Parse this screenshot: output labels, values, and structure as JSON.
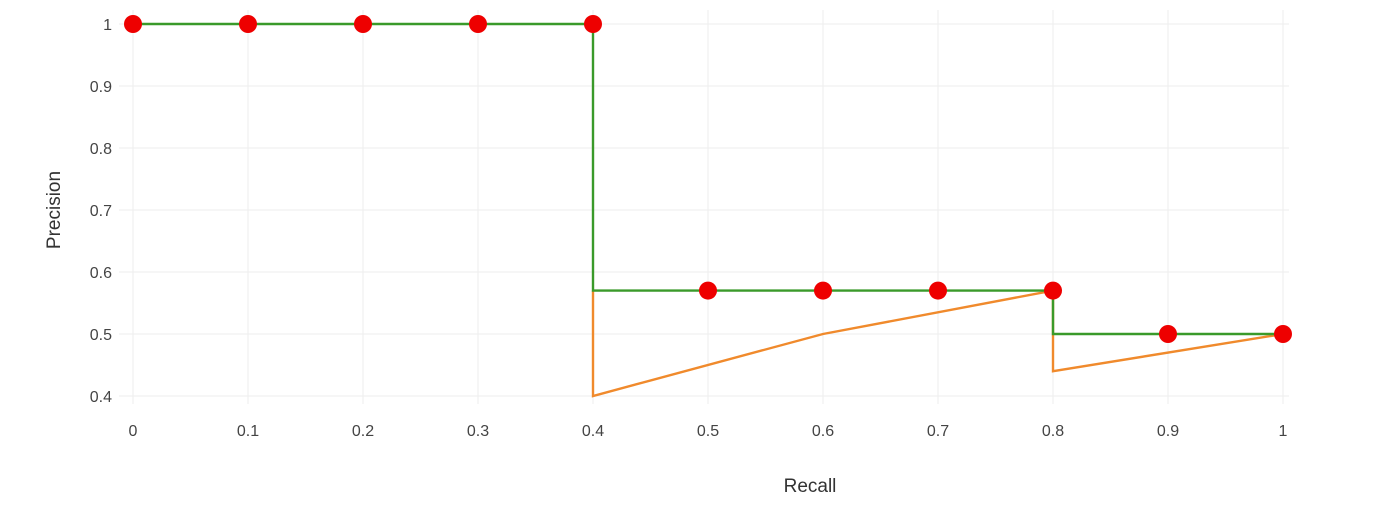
{
  "chart_data": {
    "type": "line",
    "xlabel": "Recall",
    "ylabel": "Precision",
    "xlim": [
      0,
      1
    ],
    "ylim": [
      0.4,
      1
    ],
    "x_ticks": [
      "0",
      "0.1",
      "0.2",
      "0.3",
      "0.4",
      "0.5",
      "0.6",
      "0.7",
      "0.8",
      "0.9",
      "1"
    ],
    "y_ticks": [
      "0.4",
      "0.5",
      "0.6",
      "0.7",
      "0.8",
      "0.9",
      "1"
    ],
    "grid": true,
    "legend": "none",
    "series": [
      {
        "style": "step-line",
        "color": "#3a9a2a",
        "x": [
          0,
          0.4,
          0.4,
          0.8,
          0.8,
          1
        ],
        "y": [
          1,
          1,
          0.57,
          0.57,
          0.5,
          0.5
        ]
      },
      {
        "style": "line",
        "color": "#f08a2c",
        "x": [
          0.4,
          0.4,
          0.6,
          0.8,
          0.8,
          1
        ],
        "y": [
          0.57,
          0.4,
          0.5,
          0.57,
          0.44,
          0.5
        ]
      },
      {
        "style": "markers",
        "color": "#ee0000",
        "x": [
          0,
          0.1,
          0.2,
          0.3,
          0.4,
          0.5,
          0.6,
          0.7,
          0.8,
          0.9,
          1
        ],
        "y": [
          1,
          1,
          1,
          1,
          1,
          0.57,
          0.57,
          0.57,
          0.57,
          0.5,
          0.5
        ]
      }
    ]
  }
}
